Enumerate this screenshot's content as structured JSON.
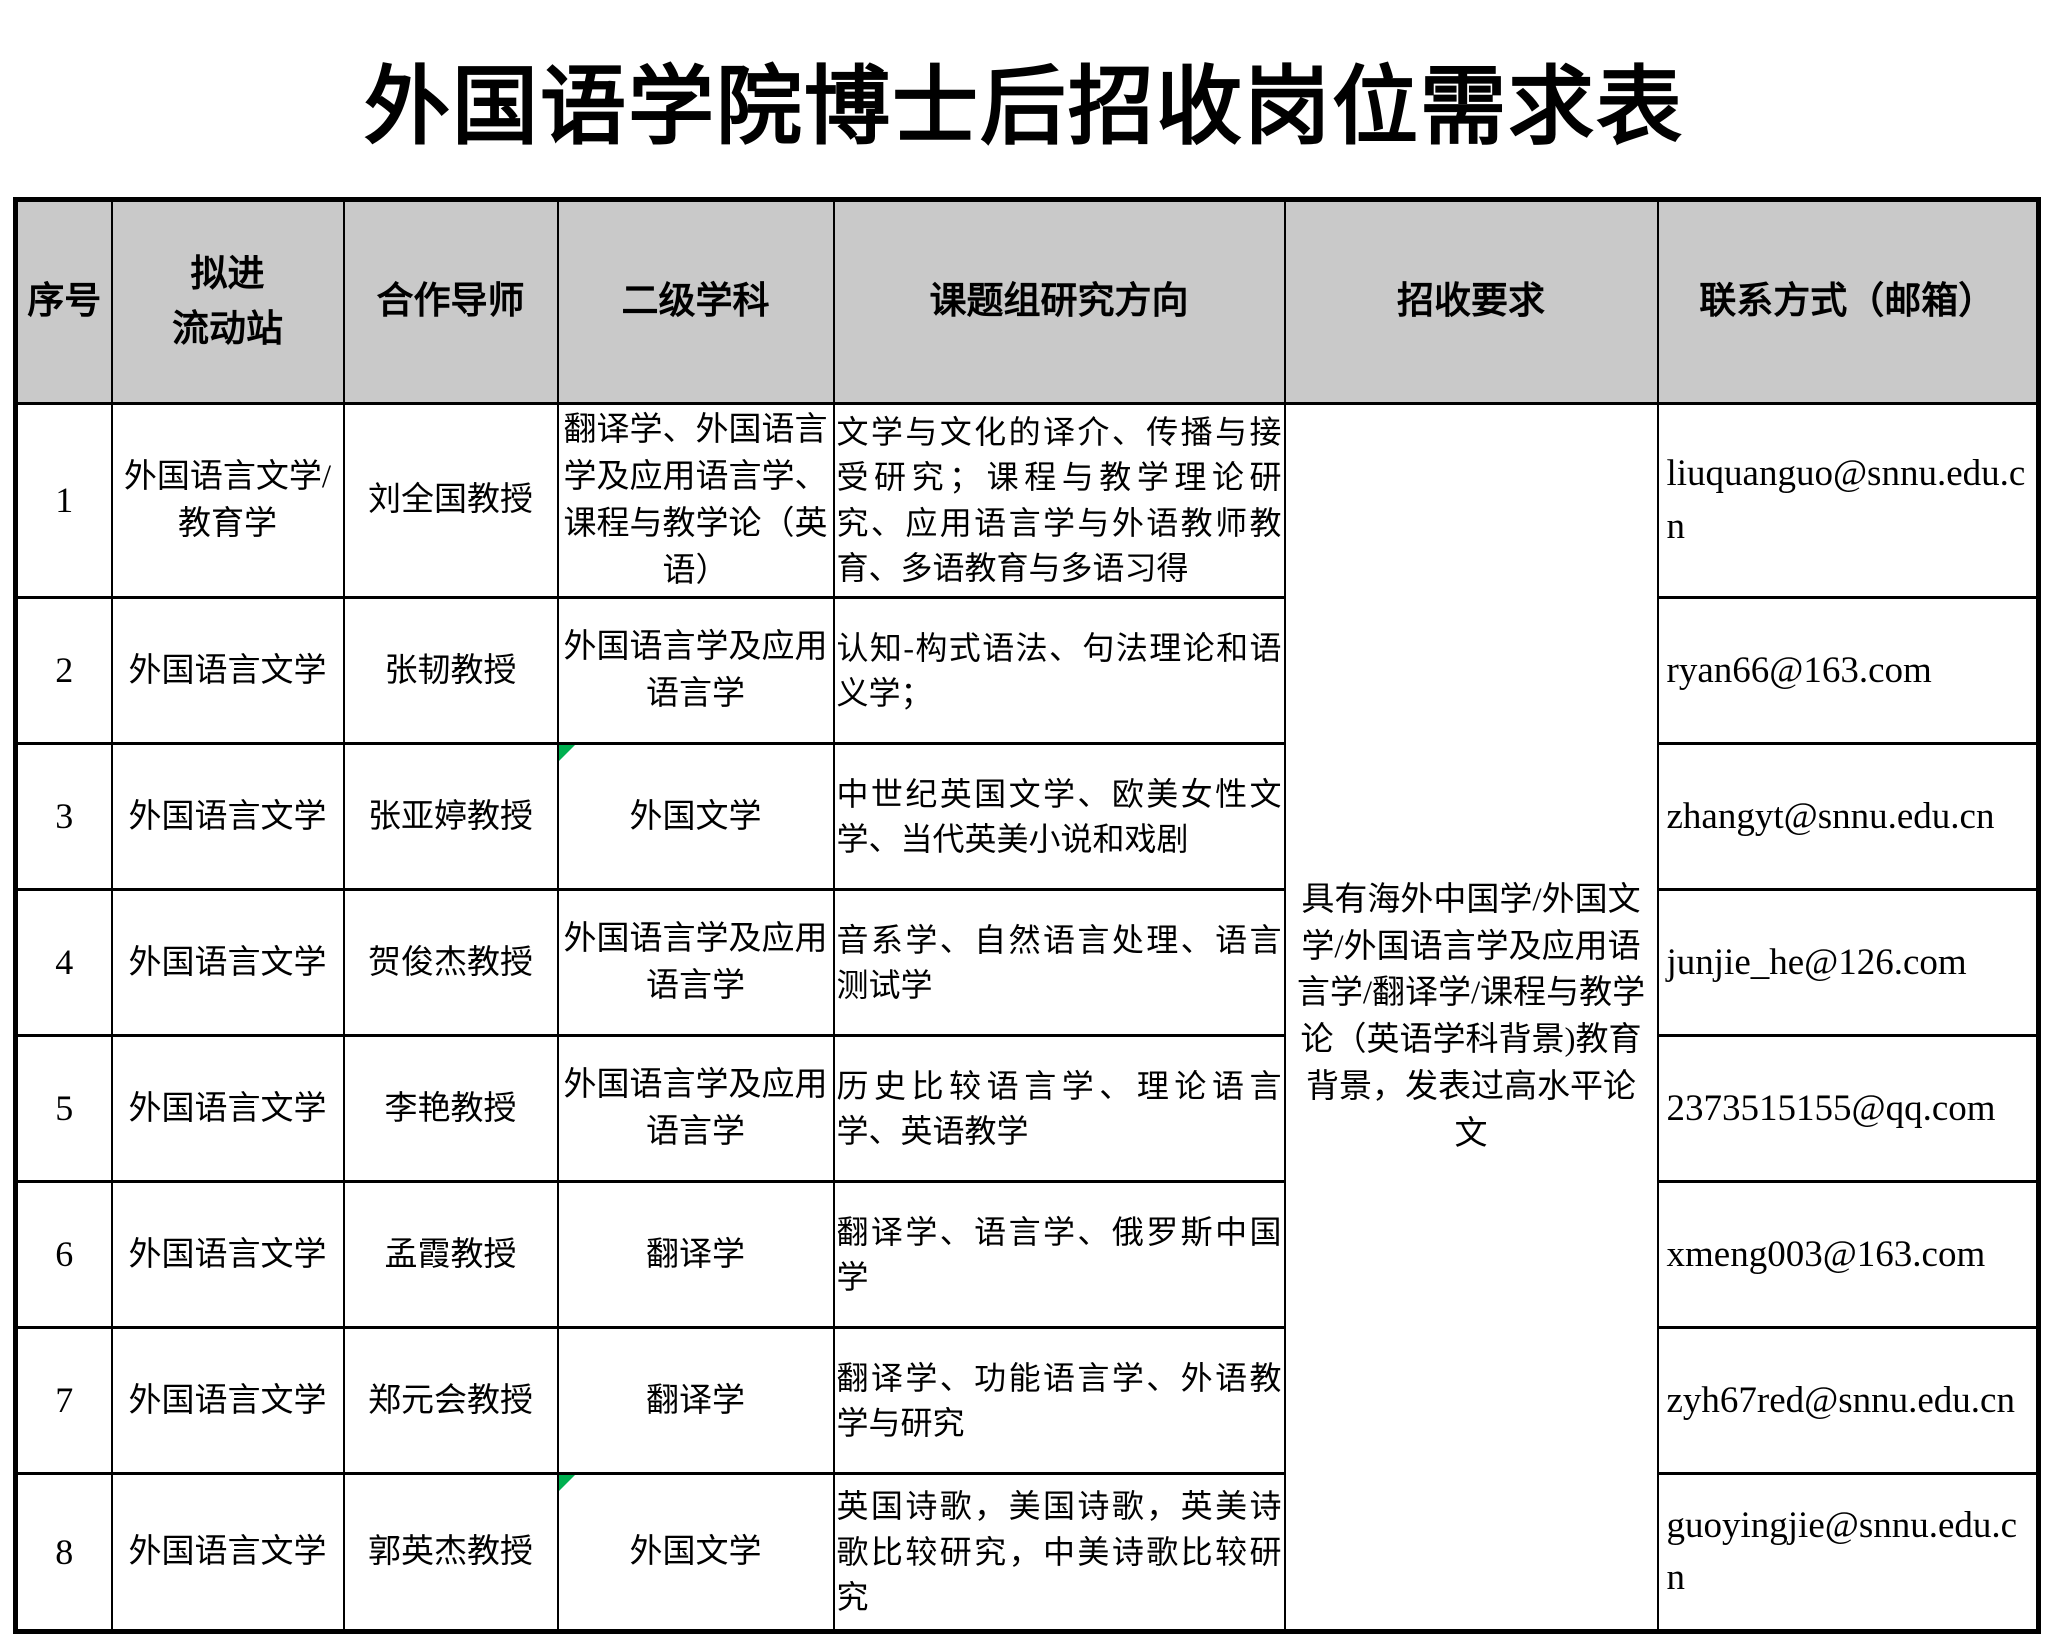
{
  "title": "外国语学院博士后招收岗位需求表",
  "colors": {
    "header_bg": "#c9c9c9",
    "flag_green": "#00b050",
    "border": "#000000"
  },
  "table": {
    "headers": [
      "序号",
      "拟进\n流动站",
      "合作导师",
      "二级学科",
      "课题组研究方向",
      "招收要求",
      "联系方式（邮箱）"
    ],
    "requirement": "具有海外中国学/外国文学/外国语言学及应用语言学/翻译学/课程与教学论（英语学科背景)教育背景，发表过高水平论文",
    "rows": [
      {
        "no": "1",
        "station": "外国语言文学/教育学",
        "mentor": "刘全国教授",
        "discipline": "翻译学、外国语言学及应用语言学、课程与教学论（英语）",
        "research": "文学与文化的译介、传播与接受研究；课程与教学理论研究、应用语言学与外语教师教育、多语教育与多语习得",
        "email": "liuquanguo@snnu.edu.cn"
      },
      {
        "no": "2",
        "station": "外国语言文学",
        "mentor": "张韧教授",
        "discipline": "外国语言学及应用语言学",
        "research": "认知-构式语法、句法理论和语义学；",
        "email": "ryan66@163.com"
      },
      {
        "no": "3",
        "station": "外国语言文学",
        "mentor": "张亚婷教授",
        "discipline": "外国文学",
        "research": "中世纪英国文学、欧美女性文学、当代英美小说和戏剧",
        "email": "zhangyt@snnu.edu.cn"
      },
      {
        "no": "4",
        "station": "外国语言文学",
        "mentor": "贺俊杰教授",
        "discipline": "外国语言学及应用语言学",
        "research": "音系学、自然语言处理、语言测试学",
        "email": "junjie_he@126.com"
      },
      {
        "no": "5",
        "station": "外国语言文学",
        "mentor": "李艳教授",
        "discipline": "外国语言学及应用语言学",
        "research": "历史比较语言学、理论语言学、英语教学",
        "email": "2373515155@qq.com"
      },
      {
        "no": "6",
        "station": "外国语言文学",
        "mentor": "孟霞教授",
        "discipline": "翻译学",
        "research": "翻译学、语言学、俄罗斯中国学",
        "email": "xmeng003@163.com"
      },
      {
        "no": "7",
        "station": "外国语言文学",
        "mentor": "郑元会教授",
        "discipline": "翻译学",
        "research": "翻译学、功能语言学、外语教学与研究",
        "email": "zyh67red@snnu.edu.cn"
      },
      {
        "no": "8",
        "station": "外国语言文学",
        "mentor": "郭英杰教授",
        "discipline": "外国文学",
        "research": "英国诗歌，美国诗歌，英美诗歌比较研究，中美诗歌比较研究",
        "email": "guoyingjie@snnu.edu.cn"
      }
    ]
  }
}
